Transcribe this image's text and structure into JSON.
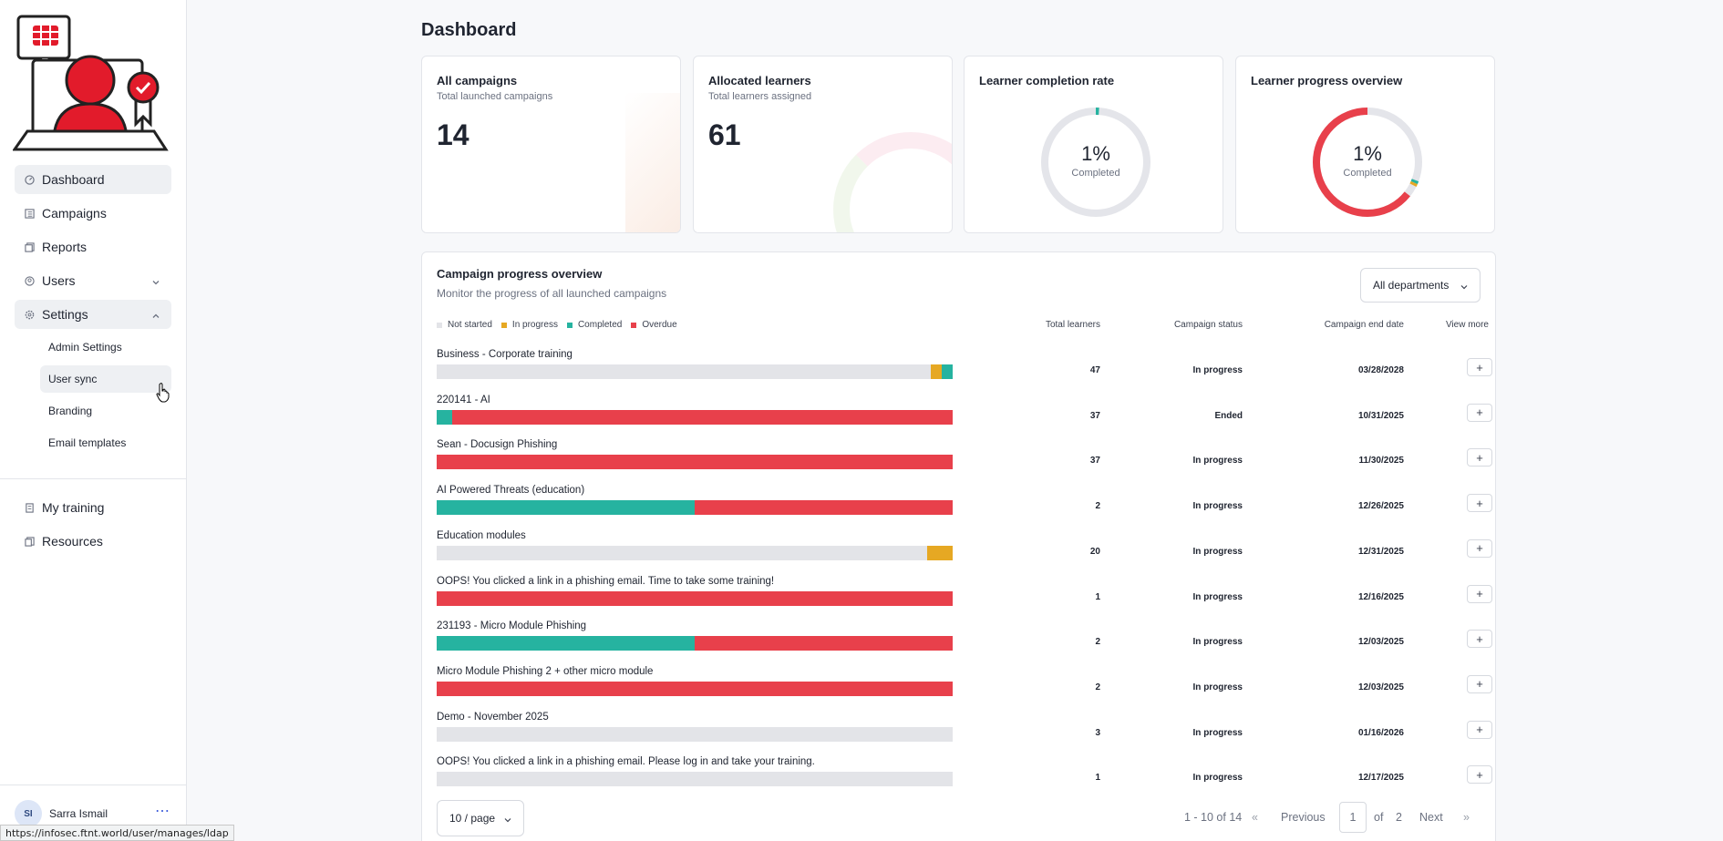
{
  "sidebar": {
    "nav": [
      {
        "label": "Dashboard",
        "icon": "dashboard-icon"
      },
      {
        "label": "Campaigns",
        "icon": "campaigns-icon"
      },
      {
        "label": "Reports",
        "icon": "reports-icon"
      },
      {
        "label": "Users",
        "icon": "users-icon"
      },
      {
        "label": "Settings",
        "icon": "settings-icon"
      }
    ],
    "settings_sub": [
      "Admin Settings",
      "User sync",
      "Branding",
      "Email templates"
    ],
    "nav2": [
      {
        "label": "My training",
        "icon": "training-icon"
      },
      {
        "label": "Resources",
        "icon": "resources-icon"
      }
    ],
    "user": {
      "initials": "SI",
      "name": "Sarra Ismail",
      "more": "⋯"
    }
  },
  "status_url": "https://infosec.ftnt.world/user/manages/ldap",
  "page_title": "Dashboard",
  "cards": {
    "campaigns": {
      "title": "All campaigns",
      "subtitle": "Total launched campaigns",
      "value": "14"
    },
    "learners": {
      "title": "Allocated learners",
      "subtitle": "Total learners assigned",
      "value": "61"
    },
    "completion": {
      "title": "Learner completion rate",
      "pct": "1%",
      "label": "Completed",
      "value": 1
    },
    "overview": {
      "title": "Learner progress overview",
      "pct": "1%",
      "label": "Completed",
      "value": 1
    }
  },
  "colors": {
    "not_started": "#e3e4e8",
    "in_progress": "#e6a823",
    "completed": "#26b3a0",
    "overdue": "#e8404b"
  },
  "panel": {
    "title": "Campaign progress overview",
    "subtitle": "Monitor the progress of all launched campaigns",
    "dept_filter": "All departments",
    "legend": [
      "Not started",
      "In progress",
      "Completed",
      "Overdue"
    ],
    "columns": {
      "learners": "Total learners",
      "status": "Campaign status",
      "end": "Campaign end date",
      "more": "View more"
    },
    "rows": [
      {
        "name": "Business - Corporate training",
        "learners": "47",
        "status": "In progress",
        "end": "03/28/2028",
        "segments": [
          {
            "c": "not_started",
            "f": 0.957
          },
          {
            "c": "in_progress",
            "f": 0.022
          },
          {
            "c": "completed",
            "f": 0.021
          }
        ]
      },
      {
        "name": "220141 - AI",
        "learners": "37",
        "status": "Ended",
        "end": "10/31/2025",
        "segments": [
          {
            "c": "completed",
            "f": 0.03
          },
          {
            "c": "overdue",
            "f": 0.97
          }
        ]
      },
      {
        "name": "Sean - Docusign Phishing",
        "learners": "37",
        "status": "In progress",
        "end": "11/30/2025",
        "segments": [
          {
            "c": "overdue",
            "f": 1
          }
        ]
      },
      {
        "name": "AI Powered Threats (education)",
        "learners": "2",
        "status": "In progress",
        "end": "12/26/2025",
        "segments": [
          {
            "c": "completed",
            "f": 0.5
          },
          {
            "c": "overdue",
            "f": 0.5
          }
        ]
      },
      {
        "name": "Education modules",
        "learners": "20",
        "status": "In progress",
        "end": "12/31/2025",
        "segments": [
          {
            "c": "not_started",
            "f": 0.95
          },
          {
            "c": "in_progress",
            "f": 0.05
          }
        ]
      },
      {
        "name": "OOPS! You clicked a link in a phishing email. Time to take some training!",
        "learners": "1",
        "status": "In progress",
        "end": "12/16/2025",
        "segments": [
          {
            "c": "overdue",
            "f": 1
          }
        ]
      },
      {
        "name": "231193 - Micro Module Phishing",
        "learners": "2",
        "status": "In progress",
        "end": "12/03/2025",
        "segments": [
          {
            "c": "completed",
            "f": 0.5
          },
          {
            "c": "overdue",
            "f": 0.5
          }
        ]
      },
      {
        "name": "Micro Module Phishing 2 + other micro module",
        "learners": "2",
        "status": "In progress",
        "end": "12/03/2025",
        "segments": [
          {
            "c": "overdue",
            "f": 1
          }
        ]
      },
      {
        "name": "Demo - November 2025",
        "learners": "3",
        "status": "In progress",
        "end": "01/16/2026",
        "segments": [
          {
            "c": "not_started",
            "f": 1
          }
        ]
      },
      {
        "name": "OOPS! You clicked a link in a phishing email. Please log in and take your training.",
        "learners": "1",
        "status": "In progress",
        "end": "12/17/2025",
        "segments": [
          {
            "c": "not_started",
            "f": 1
          }
        ]
      }
    ],
    "row_more": "+"
  },
  "pager": {
    "size": "10 / page",
    "range": "1 - 10 of 14",
    "first": "«",
    "prev": "Previous",
    "current": "1",
    "of": "of",
    "total": "2",
    "next": "Next",
    "last": "»"
  }
}
